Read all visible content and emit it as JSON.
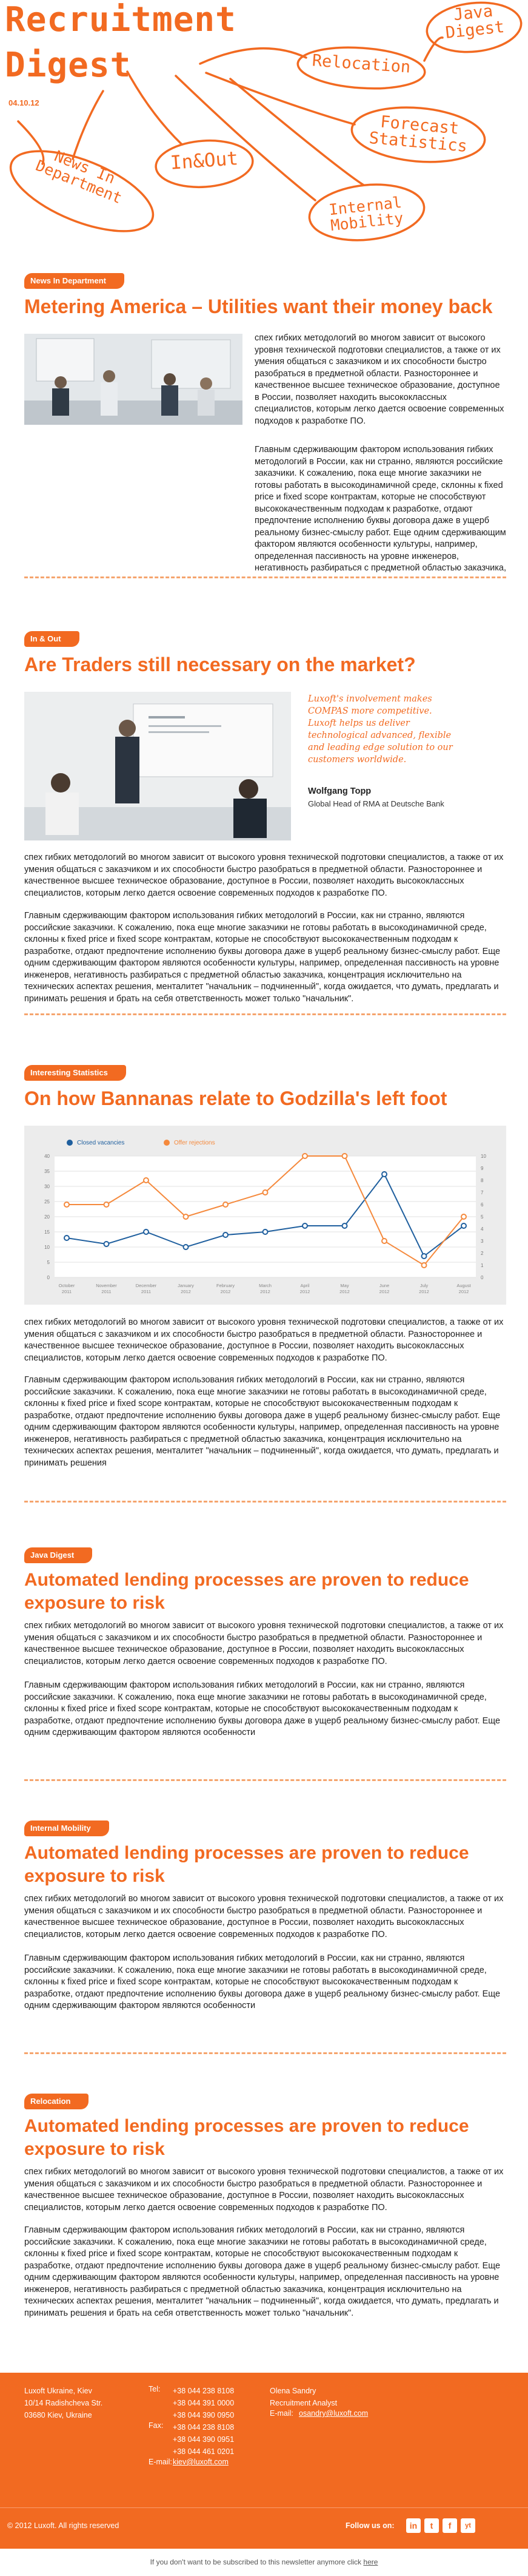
{
  "header": {
    "logo_line1": "Recruitment",
    "logo_line2": "Digest",
    "date": "04.10.12",
    "bubbles": {
      "java": "Java Digest",
      "relocation": "Relocation",
      "forecast": "Forecast Statistics",
      "inout": "In&Out",
      "news": "News In Department",
      "mobility": "Internal Mobility"
    }
  },
  "sections": {
    "news": {
      "tag": "News In Department",
      "title": "Metering America – Utilities want their money back",
      "p1": "спех гибких методологий во многом зависит от высокого уровня технической подготовки специалистов, а также от их умения общаться с заказчиком и их способности быстро разобраться в предметной области. Разностороннее и качественное высшее техническое образование, доступное в России, позволяет находить высококлассных специалистов, которым легко дается освоение современных подходов к разработке ПО.",
      "p2": "Главным сдерживающим фактором использования гибких методологий в России, как ни странно, являются российские заказчики. К сожалению, пока еще многие заказчики не готовы работать в высокодинамичной среде, склонны к fixed price и fixed scope контрактам, которые не способствуют высококачественным подходам к разработке, отдают предпочтение исполнению буквы договора даже в ущерб реальному бизнес-смыслу работ. Еще одним сдерживающим фактором являются особенности культуры, например, определенная пассивность на уровне инженеров, негативность разбираться с предметной областью заказчика,"
    },
    "inout": {
      "tag": "In & Out",
      "title": "Are Traders still necessary on the market?",
      "quote": "Luxoft's involvement makes COMPAS more competitive. Luxoft helps us deliver technological advanced, flexible and leading edge solution to our customers worldwide.",
      "quote_name": "Wolfgang Topp",
      "quote_role": "Global Head of RMA at Deutsche Bank",
      "p1": "спех гибких методологий во многом зависит от высокого уровня технической подготовки специалистов, а также от их умения общаться с заказчиком и их способности быстро разобраться в предметной области. Разностороннее и качественное высшее техническое образование, доступное в России, позволяет находить высококлассных специалистов, которым легко дается освоение современных подходов к разработке ПО.",
      "p2": "Главным сдерживающим фактором использования гибких методологий в России, как ни странно, являются российские заказчики. К сожалению, пока еще многие заказчики не готовы работать в высокодинамичной среде, склонны к fixed price и fixed scope контрактам, которые не способствуют высококачественным подходам к разработке, отдают предпочтение исполнению буквы договора даже в ущерб реальному бизнес-смыслу работ. Еще одним сдерживающим фактором являются особенности культуры, например, определенная пассивность на уровне инженеров, негативность разбираться с предметной областью заказчика, концентрация исключительно на технических аспектах решения, менталитет \"начальник – подчиненный\", когда ожидается, что думать, предлагать и принимать решения и брать на себя ответственность может только \"начальник\"."
    },
    "stats": {
      "tag": "Interesting Statistics",
      "title": "On how Bannanas relate to Godzilla's left foot",
      "p1": "спех гибких методологий во многом зависит от высокого уровня технической подготовки специалистов, а также от их умения общаться с заказчиком и их способности быстро разобраться в предметной области. Разностороннее и качественное высшее техническое образование, доступное в России, позволяет находить высококлассных специалистов, которым легко дается освоение современных подходов к разработке ПО.",
      "p2": "Главным сдерживающим фактором использования гибких методологий в России, как ни странно, являются российские заказчики. К сожалению, пока еще многие заказчики не готовы работать в высокодинамичной среде, склонны к fixed price и fixed scope контрактам, которые не способствуют высококачественным подходам к разработке, отдают предпочтение исполнению буквы договора даже в ущерб реальному бизнес-смыслу работ. Еще одним сдерживающим фактором являются особенности культуры, например, определенная пассивность на уровне инженеров, негативность разбираться с предметной областью заказчика, концентрация исключительно на технических аспектах решения, менталитет \"начальник – подчиненный\", когда ожидается, что думать, предлагать и принимать решения"
    },
    "java": {
      "tag": "Java Digest",
      "title": "Automated lending processes are proven to reduce exposure to risk",
      "p1": "спех гибких методологий во многом зависит от высокого уровня технической подготовки специалистов, а также от их умения общаться с заказчиком и их способности быстро разобраться в предметной области. Разностороннее и качественное высшее техническое образование, доступное в России, позволяет находить высококлассных специалистов, которым легко дается освоение современных подходов к разработке ПО.",
      "p2": "Главным сдерживающим фактором использования гибких методологий в России, как ни странно, являются российские заказчики. К сожалению, пока еще многие заказчики не готовы работать в высокодинамичной среде, склонны к fixed price и fixed scope контрактам, которые не способствуют высококачественным подходам к разработке, отдают предпочтение исполнению буквы договора даже в ущерб реальному бизнес-смыслу работ. Еще одним сдерживающим фактором являются особенности"
    },
    "mobility": {
      "tag": "Internal Mobility",
      "title": "Automated lending processes are proven to reduce exposure to risk",
      "p1": "спех гибких методологий во многом зависит от высокого уровня технической подготовки специалистов, а также от их умения общаться с заказчиком и их способности быстро разобраться в предметной области. Разностороннее и качественное высшее техническое образование, доступное в России, позволяет находить высококлассных специалистов, которым легко дается освоение современных подходов к разработке ПО.",
      "p2": "Главным сдерживающим фактором использования гибких методологий в России, как ни странно, являются российские заказчики. К сожалению, пока еще многие заказчики не готовы работать в высокодинамичной среде, склонны к fixed price и fixed scope контрактам, которые не способствуют высококачественным подходам к разработке, отдают предпочтение исполнению буквы договора даже в ущерб реальному бизнес-смыслу работ. Еще одним сдерживающим фактором являются особенности"
    },
    "relocation": {
      "tag": "Relocation",
      "title": "Automated lending processes are proven to reduce exposure to risk",
      "p1": "спех гибких методологий во многом зависит от высокого уровня технической подготовки специалистов, а также от их умения общаться с заказчиком и их способности быстро разобраться в предметной области. Разностороннее и качественное высшее техническое образование, доступное в России, позволяет находить высококлассных специалистов, которым легко дается освоение современных подходов к разработке ПО.",
      "p2": "Главным сдерживающим фактором использования гибких методологий в России, как ни странно, являются российские заказчики. К сожалению, пока еще многие заказчики не готовы работать в высокодинамичной среде, склонны к fixed price и fixed scope контрактам, которые не способствуют высококачественным подходам к разработке, отдают предпочтение исполнению буквы договора даже в ущерб реальному бизнес-смыслу работ. Еще одним сдерживающим фактором являются особенности культуры, например, определенная пассивность на уровне инженеров, негативность разбираться с предметной областью заказчика, концентрация исключительно на технических аспектах решения, менталитет \"начальник – подчиненный\", когда ожидается, что думать, предлагать и принимать решения и брать на себя ответственность может только \"начальник\"."
    }
  },
  "chart_data": {
    "type": "line",
    "categories": [
      "October 2011",
      "November 2011",
      "December 2011",
      "January 2012",
      "February 2012",
      "March 2012",
      "April 2012",
      "May 2012",
      "June 2012",
      "July 2012",
      "August 2012"
    ],
    "series": [
      {
        "name": "Closed vacancies",
        "axis": "left",
        "color": "#1f5f9e",
        "values": [
          13,
          11,
          15,
          10,
          14,
          15,
          17,
          17,
          34,
          7,
          17
        ]
      },
      {
        "name": "Offer rejections",
        "axis": "right",
        "color": "#f5893c",
        "values": [
          6,
          6,
          8,
          5,
          6,
          7,
          10,
          10,
          3,
          1,
          5
        ]
      }
    ],
    "y_left": {
      "min": 0,
      "max": 40,
      "ticks": [
        0,
        5,
        10,
        15,
        20,
        25,
        30,
        35,
        40
      ]
    },
    "y_right": {
      "min": 0,
      "max": 10,
      "ticks": [
        0,
        1,
        2,
        3,
        4,
        5,
        6,
        7,
        8,
        9,
        10
      ]
    },
    "legend": "top-left",
    "grid": true
  },
  "footer": {
    "address": [
      "Luxoft Ukraine, Kiev",
      "10/14 Radishcheva Str.",
      "03680 Kiev, Ukraine"
    ],
    "tel_label": "Tel:",
    "tel": [
      "+38 044 238 8108",
      "+38 044 391 0000",
      "+38 044 390 0950"
    ],
    "fax_label": "Fax:",
    "fax": [
      "+38 044 238 8108",
      "+38 044 390 0951",
      "+38 044 461 0201"
    ],
    "email_label": "E-mail:",
    "email": "kiev@luxoft.com",
    "contact_name": "Olena Sandry",
    "contact_role": "Recruitment Analyst",
    "contact_email_label": "E-mail:",
    "contact_email": "osandry@luxoft.com",
    "copyright": "© 2012 Luxoft. All rights reserved",
    "follow": "Follow us on:",
    "social": [
      "in",
      "t",
      "f",
      "yt"
    ],
    "unsubscribe_text": "If you don't want to be subscribed to this newsletter anymore click",
    "unsubscribe_link": "here"
  }
}
